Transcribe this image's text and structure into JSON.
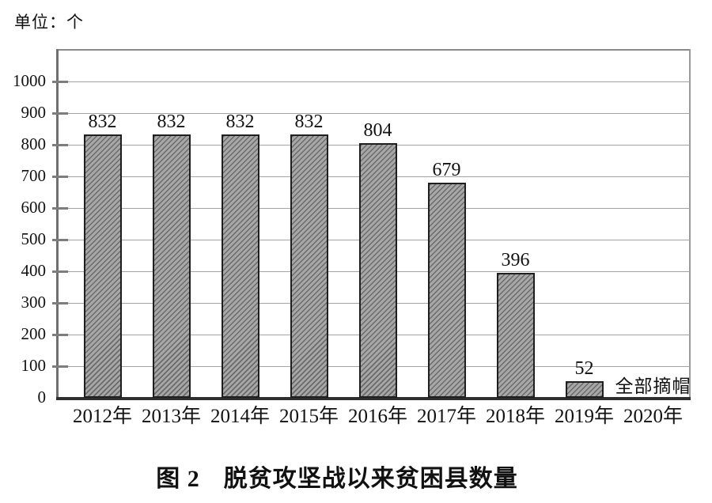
{
  "figure": {
    "unit_label": "单位：个",
    "caption_label": "图 2",
    "caption_title": "脱贫攻坚战以来贫困县数量"
  },
  "chart_data": {
    "type": "bar",
    "title": "图 2 脱贫攻坚战以来贫困县数量",
    "unit_label": "单位：个",
    "categories": [
      "2012年",
      "2013年",
      "2014年",
      "2015年",
      "2016年",
      "2017年",
      "2018年",
      "2019年",
      "2020年"
    ],
    "values": [
      832,
      832,
      832,
      832,
      804,
      679,
      396,
      52,
      null
    ],
    "annotations": [
      {
        "category": "2020年",
        "text": "全部摘帽"
      }
    ],
    "ylim": [
      0,
      1100
    ],
    "yticks": [
      0,
      100,
      200,
      300,
      400,
      500,
      600,
      700,
      800,
      900,
      1000
    ],
    "grid": "horizontal",
    "legend_position": "none",
    "colors": {
      "bar_fill": "#a7a7a7",
      "hatch": "/",
      "hatch_color": "#6a6a6a",
      "bar_border": "#1f1f1f",
      "grid_color": "#a3a3a3",
      "axis_color": "#2e2e2e",
      "frame_color": "#8a8a8a",
      "text_color": "#111111"
    }
  }
}
